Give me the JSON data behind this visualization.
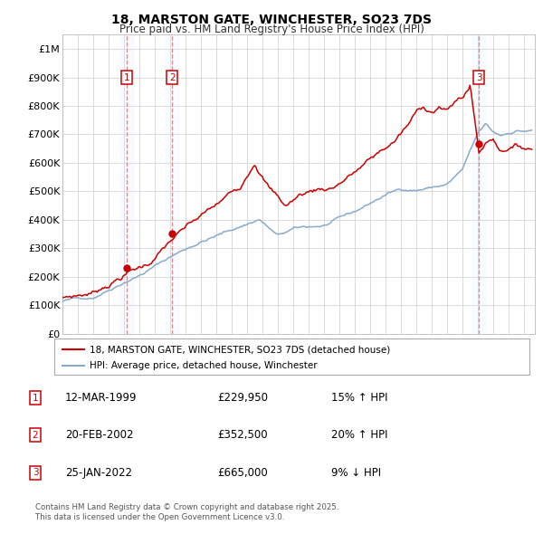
{
  "title": "18, MARSTON GATE, WINCHESTER, SO23 7DS",
  "subtitle": "Price paid vs. HM Land Registry's House Price Index (HPI)",
  "legend_label_red": "18, MARSTON GATE, WINCHESTER, SO23 7DS (detached house)",
  "legend_label_blue": "HPI: Average price, detached house, Winchester",
  "footer1": "Contains HM Land Registry data © Crown copyright and database right 2025.",
  "footer2": "This data is licensed under the Open Government Licence v3.0.",
  "sales": [
    {
      "num": 1,
      "date": "12-MAR-1999",
      "price": 229950,
      "pct": "15%",
      "dir": "↑",
      "year": 1999.19
    },
    {
      "num": 2,
      "date": "20-FEB-2002",
      "price": 352500,
      "pct": "20%",
      "dir": "↑",
      "year": 2002.13
    },
    {
      "num": 3,
      "date": "25-JAN-2022",
      "price": 665000,
      "pct": "9%",
      "dir": "↓",
      "year": 2022.07
    }
  ],
  "ylim": [
    0,
    1050000
  ],
  "yticks": [
    0,
    100000,
    200000,
    300000,
    400000,
    500000,
    600000,
    700000,
    800000,
    900000,
    1000000
  ],
  "ytick_labels": [
    "£0",
    "£100K",
    "£200K",
    "£300K",
    "£400K",
    "£500K",
    "£600K",
    "£700K",
    "£800K",
    "£900K",
    "£1M"
  ],
  "red_color": "#cc0000",
  "blue_color": "#88aacc",
  "sale_marker_color": "#cc0000",
  "vline_color": "#dd8888",
  "shade_color": "#ddeeff",
  "grid_color": "#cccccc",
  "background_color": "#ffffff",
  "xlim_start": 1995.0,
  "xlim_end": 2025.7
}
